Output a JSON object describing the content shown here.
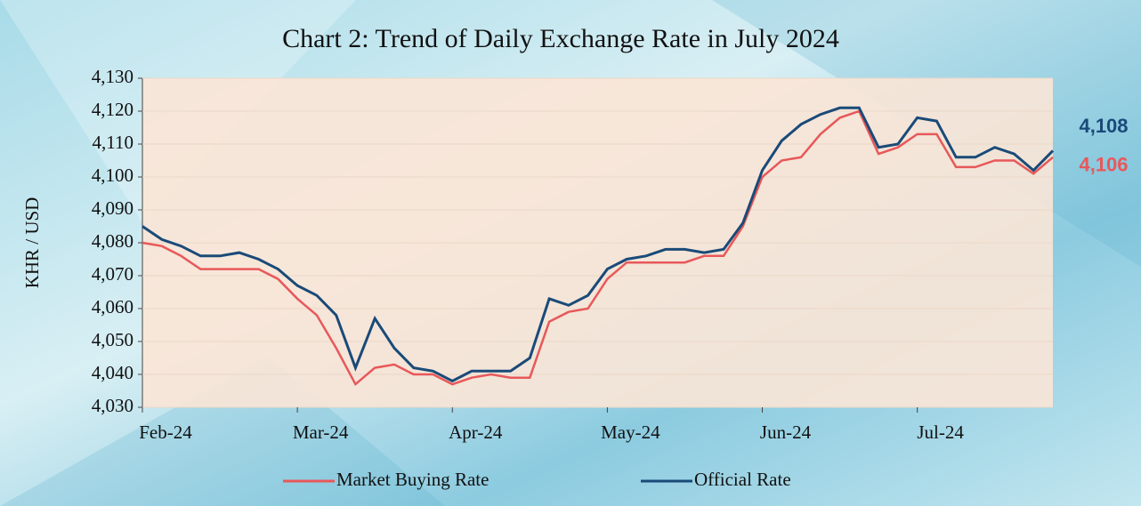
{
  "chart_data": {
    "type": "line",
    "title": "Chart 2: Trend of Daily Exchange Rate in July 2024",
    "y_label": "KHR / USD",
    "categories": [
      "Feb-24",
      null,
      null,
      null,
      null,
      null,
      null,
      null,
      "Mar-24",
      null,
      null,
      null,
      null,
      null,
      null,
      null,
      "Apr-24",
      null,
      null,
      null,
      null,
      null,
      null,
      null,
      "May-24",
      null,
      null,
      null,
      null,
      null,
      null,
      null,
      "Jun-24",
      null,
      null,
      null,
      null,
      null,
      null,
      null,
      "Jul-24",
      null,
      null,
      null,
      null,
      null,
      null,
      null
    ],
    "series": [
      {
        "name": "Market Buying Rate",
        "color": "#e8585a",
        "values": [
          4080,
          4079,
          4076,
          4072,
          4072,
          4072,
          4072,
          4069,
          4063,
          4058,
          4048,
          4037,
          4042,
          4043,
          4040,
          4040,
          4037,
          4039,
          4040,
          4039,
          4039,
          4056,
          4059,
          4060,
          4069,
          4074,
          4074,
          4074,
          4074,
          4076,
          4076,
          4085,
          4100,
          4105,
          4106,
          4113,
          4118,
          4120,
          4107,
          4109,
          4113,
          4113,
          4103,
          4103,
          4105,
          4105,
          4101,
          4106
        ],
        "value_labels": [
          null,
          null,
          null,
          null,
          null,
          null,
          null,
          null,
          null,
          null,
          null,
          null,
          null,
          null,
          null,
          null,
          null,
          null,
          null,
          null,
          null,
          null,
          null,
          null,
          null,
          null,
          null,
          null,
          null,
          null,
          null,
          null,
          null,
          null,
          null,
          null,
          null,
          null,
          null,
          null,
          null,
          null,
          null,
          null,
          null,
          null,
          null,
          "4,106"
        ]
      },
      {
        "name": "Official Rate",
        "color": "#1a4a78",
        "values": [
          4085,
          4081,
          4079,
          4076,
          4076,
          4077,
          4075,
          4072,
          4067,
          4064,
          4058,
          4042,
          4057,
          4048,
          4042,
          4041,
          4038,
          4041,
          4041,
          4041,
          4045,
          4063,
          4061,
          4064,
          4072,
          4075,
          4076,
          4078,
          4078,
          4077,
          4078,
          4086,
          4102,
          4111,
          4116,
          4119,
          4121,
          4121,
          4109,
          4110,
          4118,
          4117,
          4106,
          4106,
          4109,
          4107,
          4102,
          4108
        ],
        "value_labels": [
          null,
          null,
          null,
          null,
          null,
          null,
          null,
          null,
          null,
          null,
          null,
          null,
          null,
          null,
          null,
          null,
          null,
          null,
          null,
          null,
          null,
          null,
          null,
          null,
          null,
          null,
          null,
          null,
          null,
          null,
          null,
          null,
          null,
          null,
          null,
          null,
          null,
          null,
          null,
          null,
          null,
          null,
          null,
          null,
          null,
          null,
          null,
          "4,108"
        ]
      }
    ],
    "ylim": [
      4030,
      4130
    ],
    "yticks": [
      {
        "value": 4030,
        "label": "4,030"
      },
      {
        "value": 4040,
        "label": "4,040"
      },
      {
        "value": 4050,
        "label": "4,050"
      },
      {
        "value": 4060,
        "label": "4,060"
      },
      {
        "value": 4070,
        "label": "4,070"
      },
      {
        "value": 4080,
        "label": "4,080"
      },
      {
        "value": 4090,
        "label": "4,090"
      },
      {
        "value": 4100,
        "label": "4,100"
      },
      {
        "value": 4110,
        "label": "4,110"
      },
      {
        "value": 4120,
        "label": "4,120"
      },
      {
        "value": 4130,
        "label": "4,130"
      }
    ],
    "grid": true,
    "legend": "bottom"
  }
}
